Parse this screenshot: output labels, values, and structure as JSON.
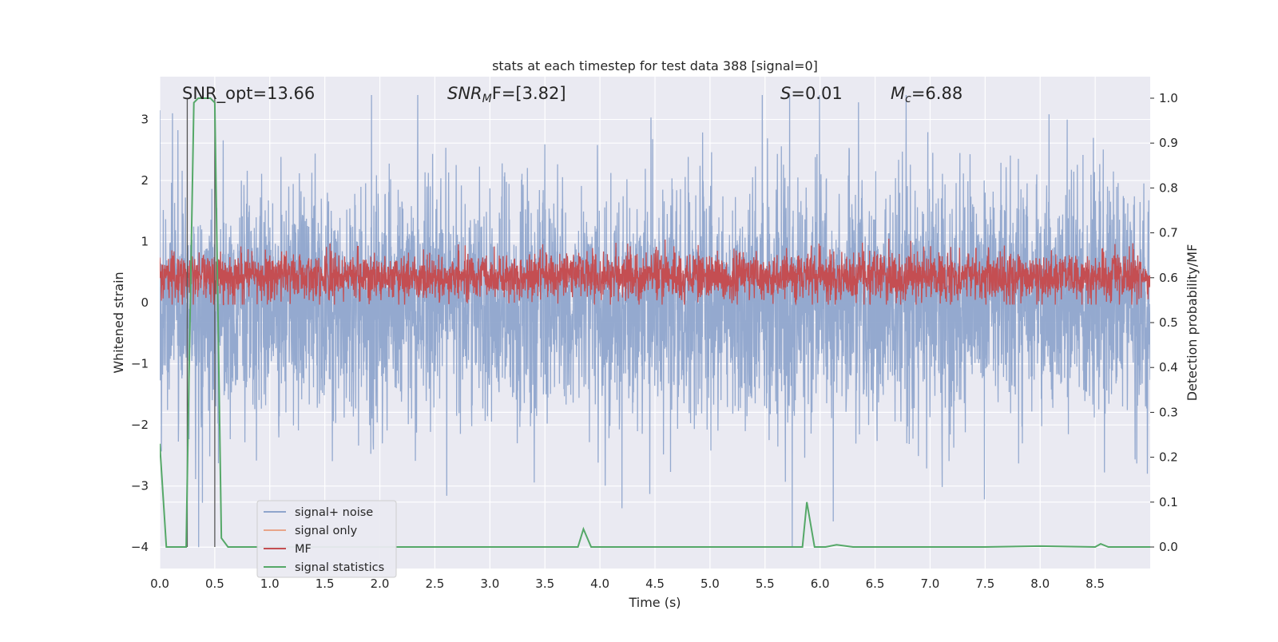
{
  "chart_data": {
    "type": "line",
    "title": "stats at each timestep for test data 388 [signal=0]",
    "xlabel": "Time (s)",
    "ylabel": "Whitened strain",
    "y2label": "Detection probability/MF",
    "xlim": [
      0,
      9
    ],
    "ylim": [
      -4.35,
      3.7
    ],
    "y2lim": [
      -0.048,
      1.048
    ],
    "x_ticks": [
      "0.0",
      "0.5",
      "1.0",
      "1.5",
      "2.0",
      "2.5",
      "3.0",
      "3.5",
      "4.0",
      "4.5",
      "5.0",
      "5.5",
      "6.0",
      "6.5",
      "7.0",
      "7.5",
      "8.0",
      "8.5"
    ],
    "y_ticks": [
      "3",
      "2",
      "1",
      "0",
      "−1",
      "−2",
      "−3",
      "−4"
    ],
    "y2_ticks": [
      "1.0",
      "0.9",
      "0.8",
      "0.7",
      "0.6",
      "0.5",
      "0.4",
      "0.3",
      "0.2",
      "0.1",
      "0.0"
    ],
    "grid": true,
    "legend_position": "lower-left",
    "annotations": {
      "snr_opt": "SNR_opt=13.66",
      "snr_mf_label": "SNR",
      "snr_mf_sub": "M",
      "snr_mf_rest": "F=[3.82]",
      "s_label": "S",
      "s_rest": "=0.01",
      "mc_label": "M",
      "mc_sub": "c",
      "mc_rest": "=6.88"
    },
    "vertical_markers_x": [
      0.25,
      0.5
    ],
    "series": [
      {
        "name": "signal+ noise",
        "color": "#8fa5cc",
        "axis": "left",
        "description": "whitened noise, amplitude mostly within ±2 with spikes to about ±3.3",
        "amplitude_range": [
          -4.0,
          3.4
        ]
      },
      {
        "name": "signal only",
        "color": "#e8a58a",
        "axis": "left",
        "values": []
      },
      {
        "name": "MF",
        "color": "#c44e52",
        "axis": "right",
        "description": "matched filter output fluctuating between about 0.54 and 0.68",
        "range": [
          0.54,
          0.68
        ]
      },
      {
        "name": "signal statistics",
        "color": "#55a868",
        "axis": "right",
        "x": [
          0.0,
          0.06,
          0.24,
          0.26,
          0.31,
          0.35,
          0.46,
          0.5,
          0.56,
          0.62,
          3.8,
          3.85,
          3.92,
          5.78,
          5.84,
          5.88,
          5.95,
          6.05,
          6.15,
          6.3,
          7.5,
          8.0,
          8.5,
          8.55,
          8.62,
          9.0
        ],
        "y": [
          0.23,
          0.0,
          0.0,
          0.3,
          0.99,
          1.0,
          1.0,
          0.99,
          0.02,
          0.0,
          0.0,
          0.04,
          0.0,
          0.0,
          0.0,
          0.1,
          0.0,
          0.0,
          0.005,
          0.0,
          0.0,
          0.002,
          0.0,
          0.007,
          0.0,
          0.0
        ]
      }
    ]
  }
}
